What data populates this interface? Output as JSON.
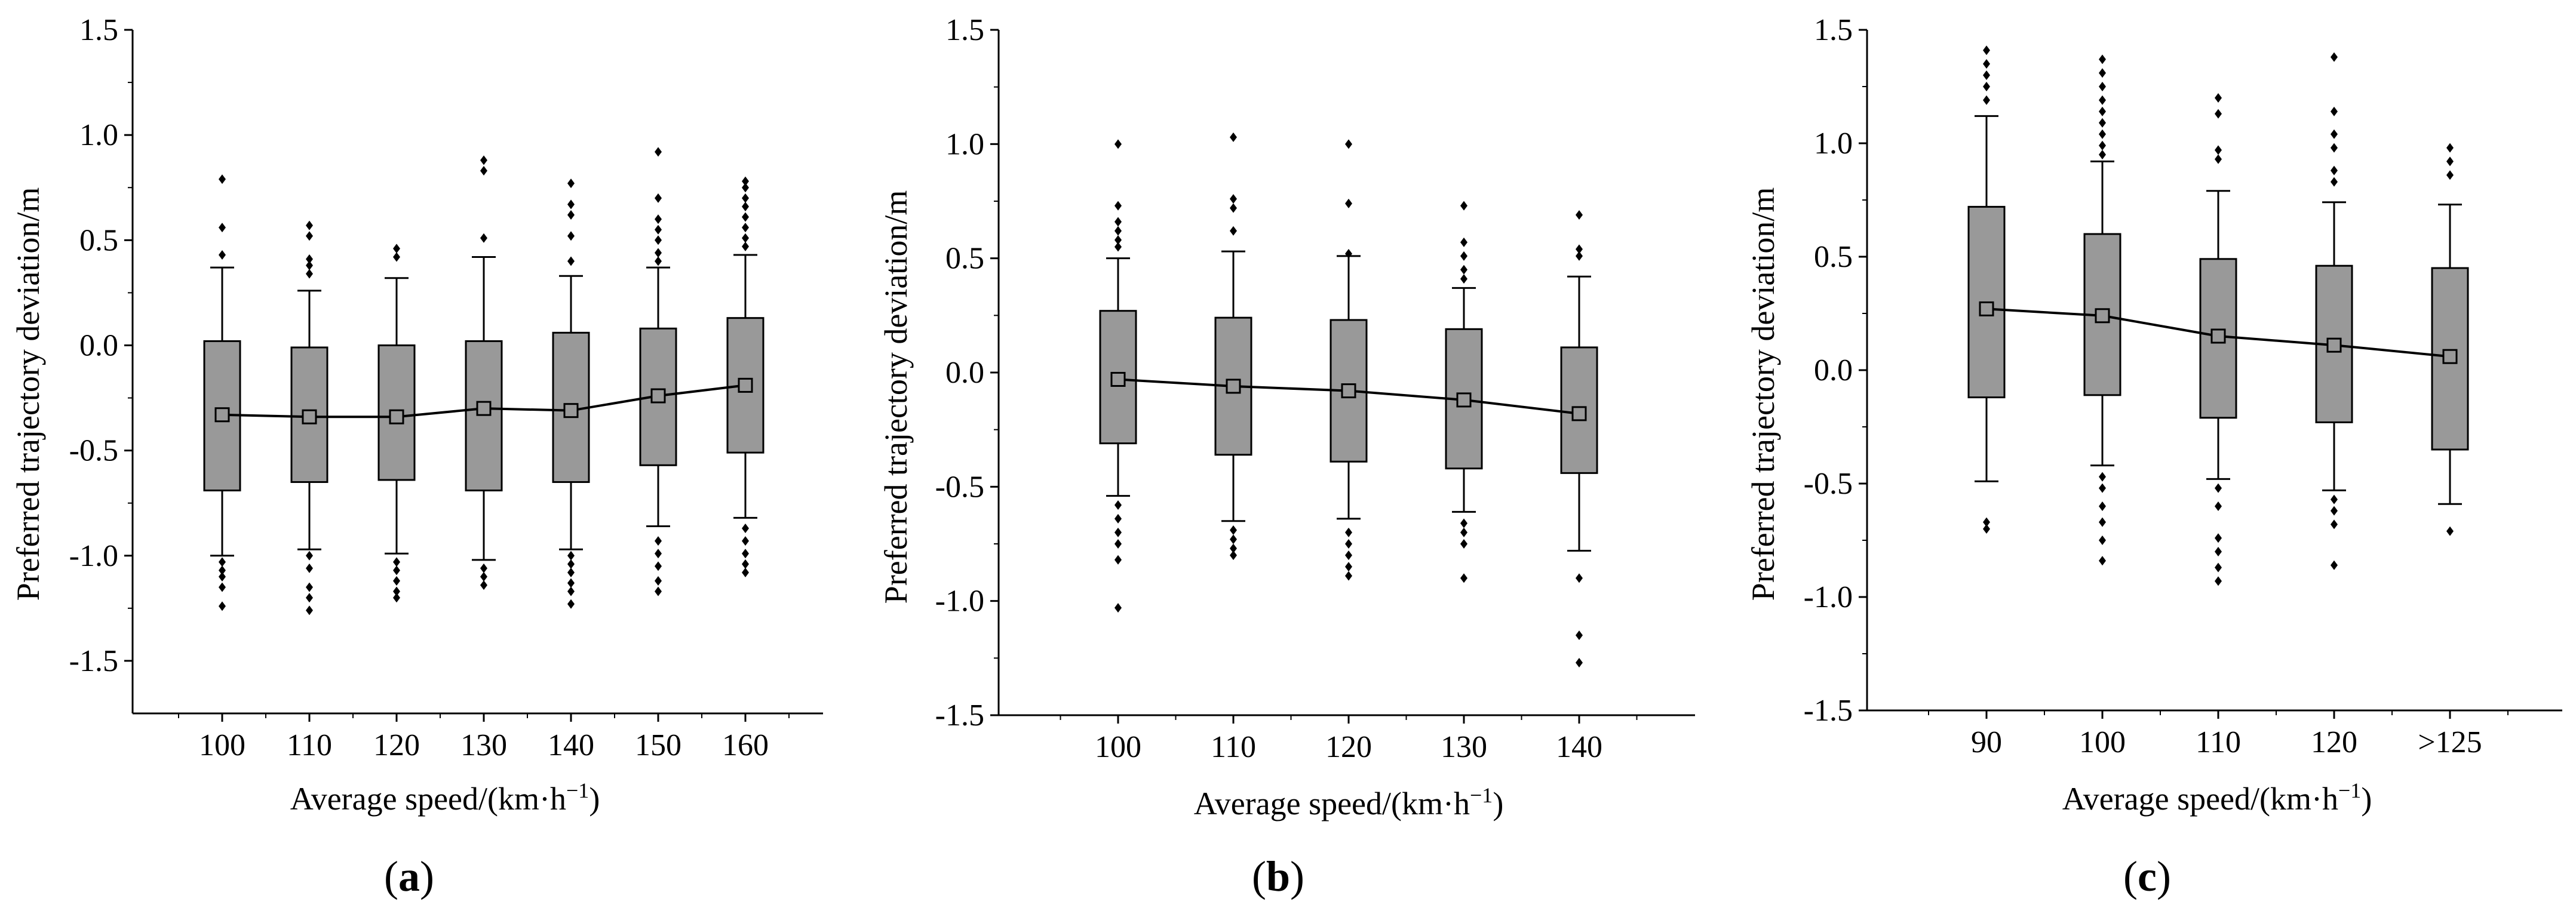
{
  "chart_data": [
    {
      "type": "box",
      "panel_label": "a",
      "xlabel": "Average speed/(km·h",
      "xlabel_sup": "−1",
      "xlabel_end": ")",
      "ylabel": "Preferred trajectory deviation/m",
      "ylim": [
        -1.75,
        1.5
      ],
      "yticks": [
        1.5,
        1.0,
        0.5,
        0.0,
        -0.5,
        -1.0,
        -1.5
      ],
      "ytick_labels": [
        "1.5",
        "1.0",
        "0.5",
        "0.0",
        "-0.5",
        "-1.0",
        "-1.5"
      ],
      "categories": [
        "100",
        "110",
        "120",
        "130",
        "140",
        "150",
        "160"
      ],
      "boxes": [
        {
          "q1": -0.69,
          "q3": 0.02,
          "whisker_low": -1.0,
          "whisker_high": 0.37,
          "mean": -0.33,
          "outliers": [
            0.79,
            0.56,
            0.43,
            -1.03,
            -1.07,
            -1.1,
            -1.15,
            -1.24
          ]
        },
        {
          "q1": -0.65,
          "q3": -0.01,
          "whisker_low": -0.97,
          "whisker_high": 0.26,
          "mean": -0.34,
          "outliers": [
            0.57,
            0.52,
            0.41,
            0.38,
            0.34,
            -1.0,
            -1.06,
            -1.15,
            -1.2,
            -1.26
          ]
        },
        {
          "q1": -0.64,
          "q3": 0.0,
          "whisker_low": -0.99,
          "whisker_high": 0.32,
          "mean": -0.34,
          "outliers": [
            0.46,
            0.42,
            -1.03,
            -1.07,
            -1.12,
            -1.17,
            -1.2
          ]
        },
        {
          "q1": -0.69,
          "q3": 0.02,
          "whisker_low": -1.02,
          "whisker_high": 0.42,
          "mean": -0.3,
          "outliers": [
            0.88,
            0.83,
            0.51,
            -1.06,
            -1.1,
            -1.14
          ]
        },
        {
          "q1": -0.65,
          "q3": 0.06,
          "whisker_low": -0.97,
          "whisker_high": 0.33,
          "mean": -0.31,
          "outliers": [
            0.77,
            0.67,
            0.62,
            0.52,
            0.4,
            -1.0,
            -1.04,
            -1.08,
            -1.13,
            -1.17,
            -1.23
          ]
        },
        {
          "q1": -0.57,
          "q3": 0.08,
          "whisker_low": -0.86,
          "whisker_high": 0.37,
          "mean": -0.24,
          "outliers": [
            0.92,
            0.7,
            0.6,
            0.55,
            0.5,
            0.44,
            0.4,
            -0.93,
            -0.99,
            -1.05,
            -1.12,
            -1.17
          ]
        },
        {
          "q1": -0.51,
          "q3": 0.13,
          "whisker_low": -0.82,
          "whisker_high": 0.43,
          "mean": -0.19,
          "outliers": [
            0.78,
            0.75,
            0.7,
            0.66,
            0.61,
            0.56,
            0.51,
            0.47,
            -0.87,
            -0.93,
            -0.99,
            -1.04,
            -1.08
          ]
        }
      ]
    },
    {
      "type": "box",
      "panel_label": "b",
      "xlabel": "Average speed/(km·h",
      "xlabel_sup": "−1",
      "xlabel_end": ")",
      "ylabel": "Preferred trajectory deviation/m",
      "ylim": [
        -1.5,
        1.5
      ],
      "yticks": [
        1.5,
        1.0,
        0.5,
        0.0,
        -0.5,
        -1.0,
        -1.5
      ],
      "ytick_labels": [
        "1.5",
        "1.0",
        "0.5",
        "0.0",
        "-0.5",
        "-1.0",
        "-1.5"
      ],
      "categories": [
        "100",
        "110",
        "120",
        "130",
        "140"
      ],
      "boxes": [
        {
          "q1": -0.31,
          "q3": 0.27,
          "whisker_low": -0.54,
          "whisker_high": 0.5,
          "mean": -0.03,
          "outliers": [
            1.0,
            0.73,
            0.66,
            0.62,
            0.58,
            0.55,
            -0.58,
            -0.64,
            -0.7,
            -0.75,
            -0.82,
            -1.03
          ]
        },
        {
          "q1": -0.36,
          "q3": 0.24,
          "whisker_low": -0.65,
          "whisker_high": 0.53,
          "mean": -0.06,
          "outliers": [
            1.03,
            0.76,
            0.72,
            0.62,
            -0.69,
            -0.73,
            -0.77,
            -0.8
          ]
        },
        {
          "q1": -0.39,
          "q3": 0.23,
          "whisker_low": -0.64,
          "whisker_high": 0.51,
          "mean": -0.08,
          "outliers": [
            1.0,
            0.74,
            0.52,
            -0.7,
            -0.75,
            -0.8,
            -0.85,
            -0.89
          ]
        },
        {
          "q1": -0.42,
          "q3": 0.19,
          "whisker_low": -0.61,
          "whisker_high": 0.37,
          "mean": -0.12,
          "outliers": [
            0.73,
            0.57,
            0.51,
            0.45,
            0.41,
            -0.66,
            -0.7,
            -0.75,
            -0.9
          ]
        },
        {
          "q1": -0.44,
          "q3": 0.11,
          "whisker_low": -0.78,
          "whisker_high": 0.42,
          "mean": -0.18,
          "outliers": [
            0.69,
            0.54,
            0.51,
            -0.9,
            -1.15,
            -1.27
          ]
        }
      ]
    },
    {
      "type": "box",
      "panel_label": "c",
      "xlabel": "Average speed/(km·h",
      "xlabel_sup": "−1",
      "xlabel_end": ")",
      "ylabel": "Preferred trajectory deviation/m",
      "ylim": [
        -1.5,
        1.5
      ],
      "yticks": [
        1.5,
        1.0,
        0.5,
        0.0,
        -0.5,
        -1.0,
        -1.5
      ],
      "ytick_labels": [
        "1.5",
        "1.0",
        "0.5",
        "0.0",
        "-0.5",
        "-1.0",
        "-1.5"
      ],
      "categories": [
        "90",
        "100",
        "110",
        "120",
        ">125"
      ],
      "boxes": [
        {
          "q1": -0.12,
          "q3": 0.72,
          "whisker_low": -0.49,
          "whisker_high": 1.12,
          "mean": 0.27,
          "outliers": [
            1.41,
            1.35,
            1.3,
            1.25,
            1.19,
            -0.67,
            -0.7
          ]
        },
        {
          "q1": -0.11,
          "q3": 0.6,
          "whisker_low": -0.42,
          "whisker_high": 0.92,
          "mean": 0.24,
          "outliers": [
            1.37,
            1.31,
            1.25,
            1.19,
            1.14,
            1.09,
            1.04,
            0.99,
            0.95,
            -0.47,
            -0.52,
            -0.6,
            -0.67,
            -0.75,
            -0.84
          ]
        },
        {
          "q1": -0.21,
          "q3": 0.49,
          "whisker_low": -0.48,
          "whisker_high": 0.79,
          "mean": 0.15,
          "outliers": [
            1.2,
            1.13,
            0.97,
            0.93,
            -0.52,
            -0.6,
            -0.74,
            -0.8,
            -0.87,
            -0.93
          ]
        },
        {
          "q1": -0.23,
          "q3": 0.46,
          "whisker_low": -0.53,
          "whisker_high": 0.74,
          "mean": 0.11,
          "outliers": [
            1.38,
            1.14,
            1.04,
            0.98,
            0.88,
            0.83,
            -0.57,
            -0.62,
            -0.68,
            -0.86
          ]
        },
        {
          "q1": -0.35,
          "q3": 0.45,
          "whisker_low": -0.59,
          "whisker_high": 0.73,
          "mean": 0.06,
          "outliers": [
            0.98,
            0.92,
            0.86,
            -0.71
          ]
        }
      ]
    }
  ]
}
